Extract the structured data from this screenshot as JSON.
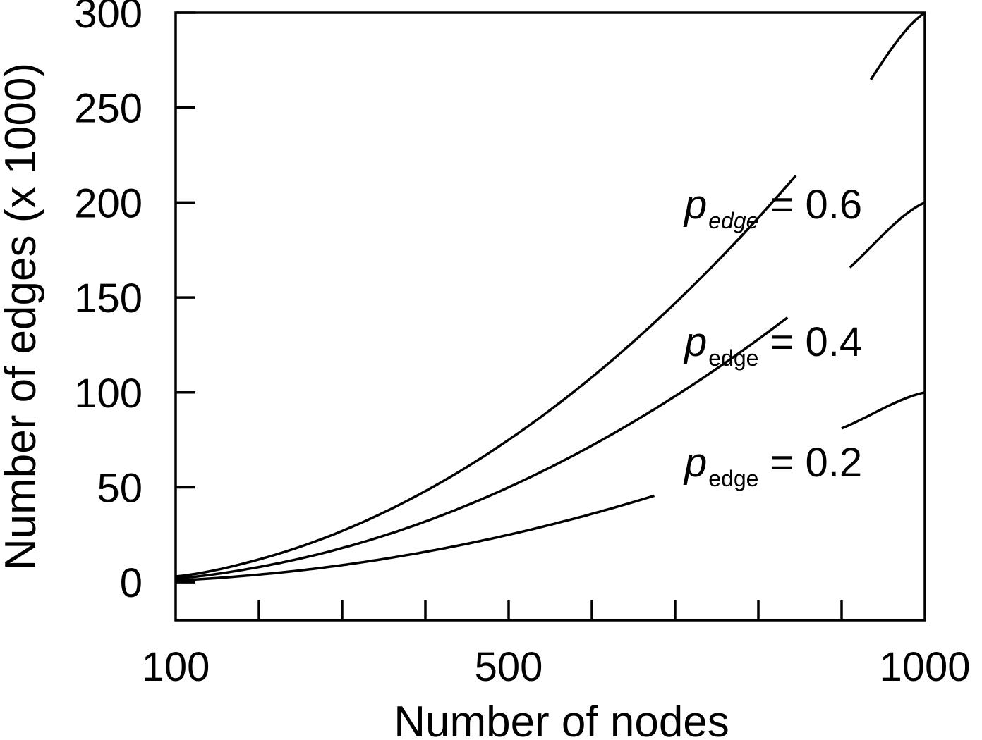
{
  "chart_data": {
    "type": "line",
    "xlabel": "Number of nodes",
    "ylabel": "Number of edges (x 1000)",
    "xlim": [
      100,
      1000
    ],
    "ylim": [
      -20,
      300
    ],
    "x_tick_labels": [
      {
        "value": 100,
        "label": "100"
      },
      {
        "value": 500,
        "label": "500"
      },
      {
        "value": 1000,
        "label": "1000"
      }
    ],
    "x_minor_ticks": [
      200,
      300,
      400,
      500,
      600,
      700,
      800,
      900
    ],
    "y_ticks": [
      {
        "value": 0,
        "label": "0"
      },
      {
        "value": 50,
        "label": "50"
      },
      {
        "value": 100,
        "label": "100"
      },
      {
        "value": 150,
        "label": "150"
      },
      {
        "value": 200,
        "label": "200"
      },
      {
        "value": 250,
        "label": "250"
      },
      {
        "value": 300,
        "label": "300"
      }
    ],
    "grid": false,
    "x": [
      100,
      200,
      300,
      400,
      500,
      600,
      700,
      800,
      900,
      1000
    ],
    "series": [
      {
        "label_main": "p",
        "label_sub": "edge",
        "label_value": " = 0.6",
        "label_italic_sub": true,
        "values": [
          3,
          12,
          27,
          48,
          75,
          108,
          147,
          192,
          243,
          300
        ]
      },
      {
        "label_main": "p",
        "label_sub": "edge",
        "label_value": " = 0.4",
        "label_italic_sub": false,
        "values": [
          2,
          8,
          18,
          32,
          50,
          72,
          98,
          128,
          162,
          200
        ]
      },
      {
        "label_main": "p",
        "label_sub": "edge",
        "label_value": " = 0.2",
        "label_italic_sub": false,
        "values": [
          1,
          4,
          9,
          16,
          25,
          36,
          49,
          64,
          81,
          100
        ]
      }
    ]
  }
}
